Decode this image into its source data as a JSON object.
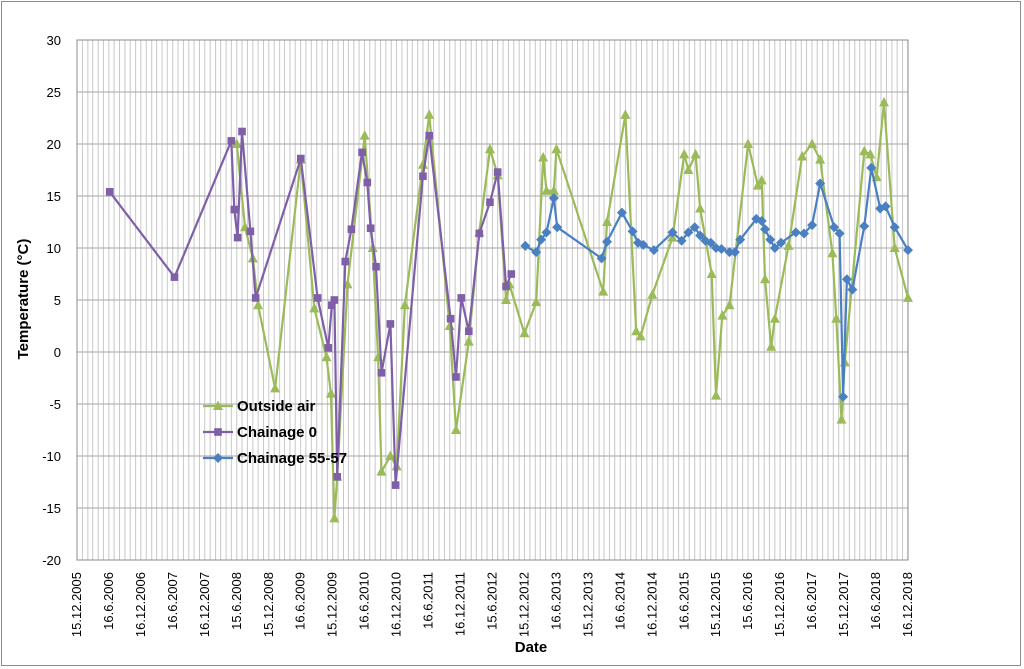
{
  "chart_data": {
    "type": "line",
    "xlabel": "Date",
    "ylabel": "Temperature  (°C)",
    "ylim": [
      -20,
      30
    ],
    "yticks": [
      30,
      25,
      20,
      15,
      10,
      5,
      0,
      -5,
      -10,
      -15,
      -20
    ],
    "xlim": [
      "2005-12-15",
      "2018-12-16"
    ],
    "xtick_labels": [
      "15.12.2005",
      "16.6.2006",
      "16.12.2006",
      "16.6.2007",
      "16.12.2007",
      "15.6.2008",
      "15.12.2008",
      "16.6.2009",
      "15.12.2009",
      "16.6.2010",
      "16.12.2010",
      "16.6.2011",
      "16.12.2011",
      "15.6.2012",
      "15.12.2012",
      "16.6.2013",
      "15.12.2013",
      "16.6.2014",
      "16.12.2014",
      "16.6.2015",
      "15.12.2015",
      "15.6.2016",
      "15.12.2016",
      "16.6.2017",
      "15.12.2017",
      "16.6.2018",
      "16.12.2018"
    ],
    "grid": "vertical and horizontal",
    "legend_position": "lower-left inside plot",
    "series": [
      {
        "name": "Outside air",
        "color": "#9BBB59",
        "marker": "triangle",
        "points": [
          [
            "2008-06-15",
            20.0
          ],
          [
            "2008-08-01",
            12.0
          ],
          [
            "2008-09-15",
            9.0
          ],
          [
            "2008-10-15",
            4.5
          ],
          [
            "2009-01-20",
            -3.5
          ],
          [
            "2009-06-16",
            18.5
          ],
          [
            "2009-09-01",
            4.2
          ],
          [
            "2009-11-10",
            -0.5
          ],
          [
            "2009-12-05",
            -4.0
          ],
          [
            "2009-12-25",
            -16.0
          ],
          [
            "2010-01-10",
            -12.0
          ],
          [
            "2010-03-10",
            6.5
          ],
          [
            "2010-06-16",
            20.8
          ],
          [
            "2010-08-01",
            10.0
          ],
          [
            "2010-09-01",
            -0.5
          ],
          [
            "2010-09-20",
            -11.5
          ],
          [
            "2010-11-10",
            -10.0
          ],
          [
            "2010-12-16",
            -11.0
          ],
          [
            "2011-02-01",
            4.5
          ],
          [
            "2011-05-15",
            18.0
          ],
          [
            "2011-06-20",
            22.8
          ],
          [
            "2011-10-15",
            2.5
          ],
          [
            "2011-11-20",
            -7.5
          ],
          [
            "2012-02-01",
            1.0
          ],
          [
            "2012-04-01",
            11.5
          ],
          [
            "2012-06-01",
            19.5
          ],
          [
            "2012-07-15",
            17.0
          ],
          [
            "2012-09-01",
            5.0
          ],
          [
            "2012-09-20",
            6.5
          ],
          [
            "2012-12-15",
            1.8
          ],
          [
            "2013-02-20",
            4.8
          ],
          [
            "2013-04-01",
            18.7
          ],
          [
            "2013-04-20",
            15.5
          ],
          [
            "2013-06-01",
            15.5
          ],
          [
            "2013-06-16",
            19.5
          ],
          [
            "2014-03-10",
            5.8
          ],
          [
            "2014-04-01",
            12.5
          ],
          [
            "2014-07-15",
            22.8
          ],
          [
            "2014-09-15",
            2.0
          ],
          [
            "2014-10-10",
            1.5
          ],
          [
            "2014-12-16",
            5.5
          ],
          [
            "2015-04-10",
            11.0
          ],
          [
            "2015-06-16",
            19.0
          ],
          [
            "2015-07-10",
            17.5
          ],
          [
            "2015-08-20",
            19.0
          ],
          [
            "2015-09-15",
            13.8
          ],
          [
            "2015-11-20",
            7.5
          ],
          [
            "2015-12-15",
            -4.2
          ],
          [
            "2016-01-20",
            3.5
          ],
          [
            "2016-03-01",
            4.5
          ],
          [
            "2016-06-15",
            20.0
          ],
          [
            "2016-08-10",
            16.0
          ],
          [
            "2016-09-01",
            16.5
          ],
          [
            "2016-09-20",
            7.0
          ],
          [
            "2016-10-25",
            0.5
          ],
          [
            "2016-11-15",
            3.2
          ],
          [
            "2017-02-01",
            10.2
          ],
          [
            "2017-04-20",
            18.8
          ],
          [
            "2017-06-16",
            20.0
          ],
          [
            "2017-08-01",
            18.5
          ],
          [
            "2017-10-10",
            9.5
          ],
          [
            "2017-11-01",
            3.2
          ],
          [
            "2017-12-01",
            -6.5
          ],
          [
            "2017-12-20",
            -1.0
          ],
          [
            "2018-04-10",
            19.3
          ],
          [
            "2018-05-15",
            19.0
          ],
          [
            "2018-06-20",
            16.8
          ],
          [
            "2018-08-01",
            24.0
          ],
          [
            "2018-10-01",
            10.0
          ],
          [
            "2018-12-16",
            5.2
          ]
        ]
      },
      {
        "name": "Chainage 0",
        "color": "#7F5FA8",
        "marker": "square",
        "points": [
          [
            "2006-06-20",
            15.4
          ],
          [
            "2007-06-25",
            7.2
          ],
          [
            "2008-05-15",
            20.3
          ],
          [
            "2008-06-01",
            13.7
          ],
          [
            "2008-06-20",
            11.0
          ],
          [
            "2008-07-15",
            21.2
          ],
          [
            "2008-09-01",
            11.6
          ],
          [
            "2008-10-01",
            5.2
          ],
          [
            "2009-06-16",
            18.6
          ],
          [
            "2009-09-20",
            5.2
          ],
          [
            "2009-11-20",
            0.4
          ],
          [
            "2009-12-10",
            4.5
          ],
          [
            "2009-12-25",
            5.0
          ],
          [
            "2010-01-10",
            -12.0
          ],
          [
            "2010-02-25",
            8.7
          ],
          [
            "2010-04-01",
            11.8
          ],
          [
            "2010-06-01",
            19.2
          ],
          [
            "2010-07-01",
            16.3
          ],
          [
            "2010-07-20",
            11.9
          ],
          [
            "2010-08-20",
            8.2
          ],
          [
            "2010-09-20",
            -2.0
          ],
          [
            "2010-11-10",
            2.7
          ],
          [
            "2010-12-10",
            -12.8
          ],
          [
            "2011-05-15",
            16.9
          ],
          [
            "2011-06-20",
            20.8
          ],
          [
            "2011-10-20",
            3.2
          ],
          [
            "2011-11-20",
            -2.4
          ],
          [
            "2011-12-20",
            5.2
          ],
          [
            "2012-02-01",
            2.0
          ],
          [
            "2012-04-01",
            11.4
          ],
          [
            "2012-06-01",
            14.4
          ],
          [
            "2012-07-15",
            17.3
          ],
          [
            "2012-09-01",
            6.3
          ],
          [
            "2012-10-01",
            7.5
          ]
        ]
      },
      {
        "name": "Chainage 55-57",
        "color": "#4A7FC1",
        "marker": "diamond",
        "points": [
          [
            "2012-12-20",
            10.2
          ],
          [
            "2013-02-20",
            9.6
          ],
          [
            "2013-03-20",
            10.8
          ],
          [
            "2013-04-20",
            11.5
          ],
          [
            "2013-06-01",
            14.8
          ],
          [
            "2013-06-20",
            12.0
          ],
          [
            "2014-03-01",
            9.0
          ],
          [
            "2014-04-01",
            10.6
          ],
          [
            "2014-06-25",
            13.4
          ],
          [
            "2014-08-25",
            11.6
          ],
          [
            "2014-09-25",
            10.5
          ],
          [
            "2014-10-25",
            10.3
          ],
          [
            "2014-12-25",
            9.8
          ],
          [
            "2015-04-10",
            11.5
          ],
          [
            "2015-06-01",
            10.7
          ],
          [
            "2015-07-10",
            11.5
          ],
          [
            "2015-08-15",
            12.0
          ],
          [
            "2015-09-15",
            11.2
          ],
          [
            "2015-10-15",
            10.7
          ],
          [
            "2015-11-15",
            10.5
          ],
          [
            "2015-12-15",
            10.0
          ],
          [
            "2016-01-15",
            9.9
          ],
          [
            "2016-03-01",
            9.6
          ],
          [
            "2016-04-01",
            9.6
          ],
          [
            "2016-05-01",
            10.8
          ],
          [
            "2016-08-01",
            12.8
          ],
          [
            "2016-09-01",
            12.6
          ],
          [
            "2016-09-20",
            11.8
          ],
          [
            "2016-10-20",
            10.8
          ],
          [
            "2016-11-15",
            10.0
          ],
          [
            "2016-12-20",
            10.5
          ],
          [
            "2017-03-15",
            11.5
          ],
          [
            "2017-05-01",
            11.4
          ],
          [
            "2017-06-16",
            12.2
          ],
          [
            "2017-08-01",
            16.2
          ],
          [
            "2017-10-20",
            12.0
          ],
          [
            "2017-11-20",
            11.4
          ],
          [
            "2017-12-10",
            -4.3
          ],
          [
            "2018-01-01",
            7.0
          ],
          [
            "2018-02-01",
            6.0
          ],
          [
            "2018-04-10",
            12.1
          ],
          [
            "2018-05-20",
            17.7
          ],
          [
            "2018-07-10",
            13.8
          ],
          [
            "2018-08-10",
            14.0
          ],
          [
            "2018-10-01",
            12.0
          ],
          [
            "2018-12-16",
            9.8
          ]
        ]
      }
    ]
  }
}
